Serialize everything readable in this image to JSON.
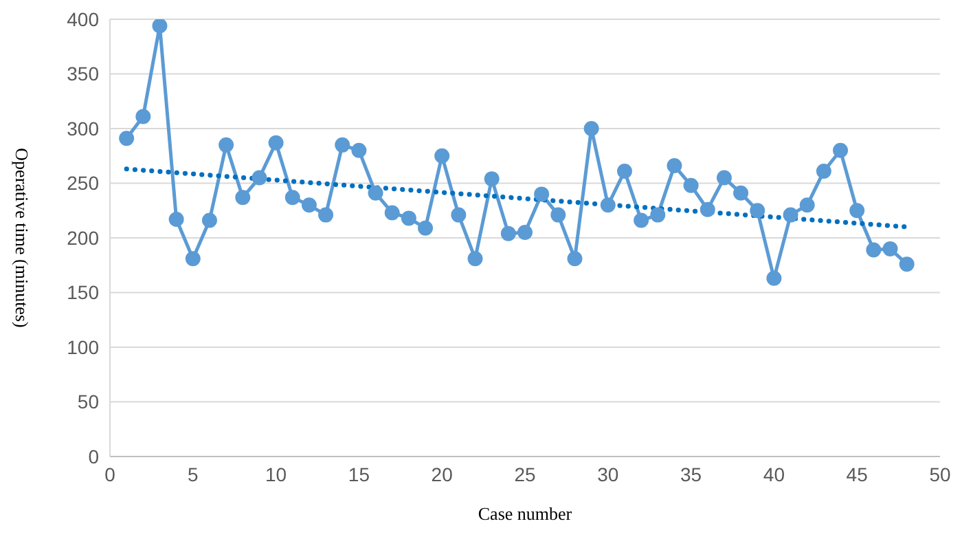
{
  "chart_data": {
    "type": "line",
    "xlabel": "Case number",
    "ylabel": "Operative time (minutes)",
    "xlim": [
      0,
      50
    ],
    "xticks": [
      0,
      5,
      10,
      15,
      20,
      25,
      30,
      35,
      40,
      45,
      50
    ],
    "ylim": [
      0,
      400
    ],
    "yticks": [
      0,
      50,
      100,
      150,
      200,
      250,
      300,
      350,
      400
    ],
    "grid": "y",
    "legend": false,
    "series": [
      {
        "color": "#5b9bd5",
        "marker": "circle",
        "line_style": "solid",
        "x": [
          1,
          2,
          3,
          4,
          5,
          6,
          7,
          8,
          9,
          10,
          11,
          12,
          13,
          14,
          15,
          16,
          17,
          18,
          19,
          20,
          21,
          22,
          23,
          24,
          25,
          26,
          27,
          28,
          29,
          30,
          31,
          32,
          33,
          34,
          35,
          36,
          37,
          38,
          39,
          40,
          41,
          42,
          43,
          44,
          45,
          46,
          47,
          48
        ],
        "values": [
          291,
          311,
          394,
          217,
          181,
          216,
          285,
          237,
          255,
          287,
          237,
          230,
          221,
          285,
          280,
          241,
          223,
          218,
          209,
          275,
          221,
          181,
          254,
          204,
          205,
          240,
          221,
          181,
          300,
          230,
          261,
          216,
          221,
          266,
          248,
          226,
          255,
          241,
          225,
          163,
          221,
          230,
          261,
          280,
          225,
          189,
          190,
          176
        ]
      },
      {
        "color": "#0070c0",
        "marker": "none",
        "line_style": "dotted",
        "x": [
          1,
          48
        ],
        "values": [
          263,
          210
        ]
      }
    ]
  }
}
